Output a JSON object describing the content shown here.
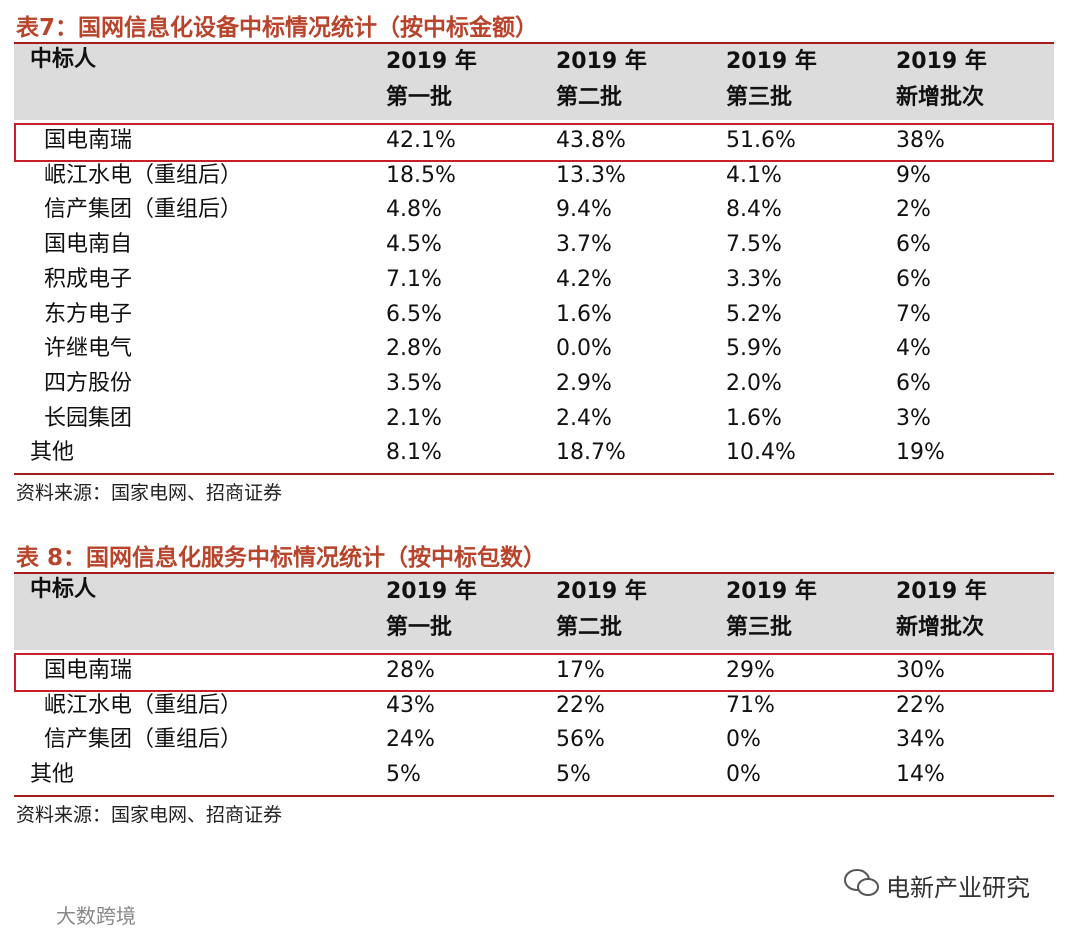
{
  "tables": [
    {
      "title": "表7：国网信息化设备中标情况统计（按中标金额）",
      "header": [
        "中标人",
        [
          "2019 年",
          "第一批"
        ],
        [
          "2019 年",
          "第二批"
        ],
        [
          "2019 年",
          "第三批"
        ],
        [
          "2019 年",
          "新增批次"
        ]
      ],
      "rows": [
        [
          "国电南瑞",
          "42.1%",
          "43.8%",
          "51.6%",
          "38%"
        ],
        [
          "岷江水电（重组后）",
          "18.5%",
          "13.3%",
          "4.1%",
          "9%"
        ],
        [
          "信产集团（重组后）",
          "4.8%",
          "9.4%",
          "8.4%",
          "2%"
        ],
        [
          "国电南自",
          "4.5%",
          "3.7%",
          "7.5%",
          "6%"
        ],
        [
          "积成电子",
          "7.1%",
          "4.2%",
          "3.3%",
          "6%"
        ],
        [
          "东方电子",
          "6.5%",
          "1.6%",
          "5.2%",
          "7%"
        ],
        [
          "许继电气",
          "2.8%",
          "0.0%",
          "5.9%",
          "4%"
        ],
        [
          "四方股份",
          "3.5%",
          "2.9%",
          "2.0%",
          "6%"
        ],
        [
          "长园集团",
          "2.1%",
          "2.4%",
          "1.6%",
          "3%"
        ],
        [
          "其他",
          "8.1%",
          "18.7%",
          "10.4%",
          "19%"
        ]
      ],
      "source": "资料来源：国家电网、招商证券"
    },
    {
      "title": "表 8：国网信息化服务中标情况统计（按中标包数）",
      "header": [
        "中标人",
        [
          "2019 年",
          "第一批"
        ],
        [
          "2019 年",
          "第二批"
        ],
        [
          "2019 年",
          "第三批"
        ],
        [
          "2019 年",
          "新增批次"
        ]
      ],
      "rows": [
        [
          "国电南瑞",
          "28%",
          "17%",
          "29%",
          "30%"
        ],
        [
          "岷江水电（重组后）",
          "43%",
          "22%",
          "71%",
          "22%"
        ],
        [
          "信产集团（重组后）",
          "24%",
          "56%",
          "0%",
          "34%"
        ],
        [
          "其他",
          "5%",
          "5%",
          "0%",
          "14%"
        ]
      ],
      "source": "资料来源：国家电网、招商证券"
    }
  ],
  "footer": {
    "brand": "电新产业研究",
    "watermark": "大数跨境"
  }
}
